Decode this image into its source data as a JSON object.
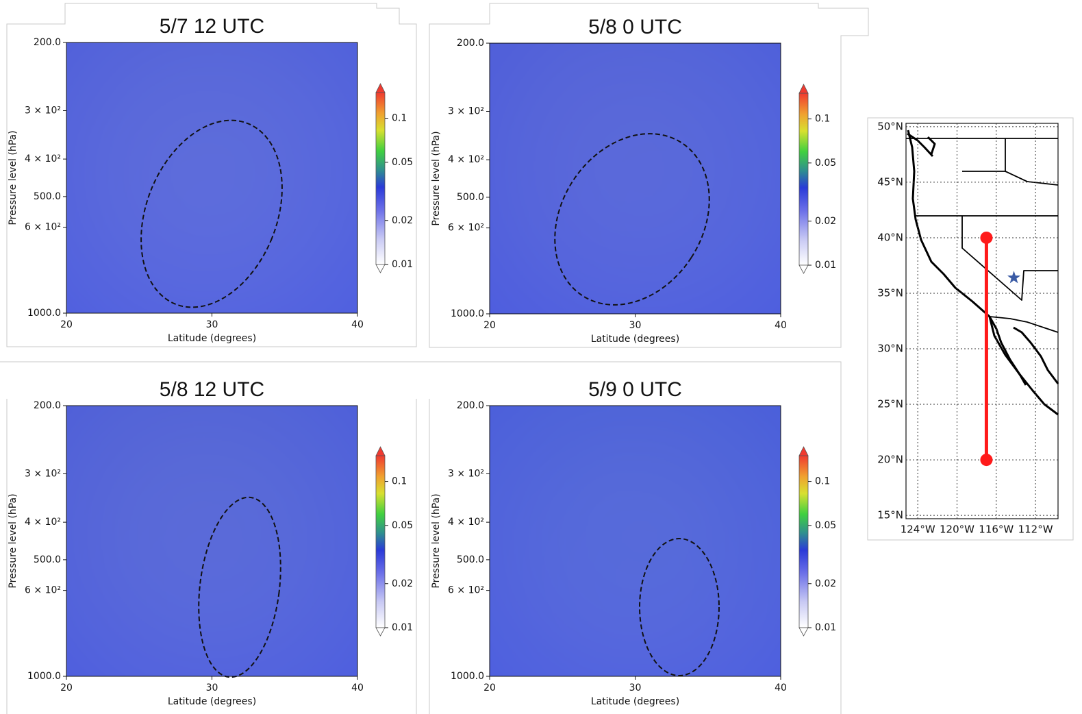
{
  "chart_data": [
    {
      "type": "contour",
      "title": "5/7 12 UTC",
      "xlabel": "Latitude (degrees)",
      "ylabel": "Pressure level (hPa)",
      "xlim": [
        20,
        40
      ],
      "xticks": [
        20,
        30,
        40
      ],
      "ylim": [
        1000,
        200
      ],
      "yscale": "log",
      "yticks": [
        {
          "value": 200,
          "label": "200.0"
        },
        {
          "value": 300,
          "label": "3 × 10²"
        },
        {
          "value": 400,
          "label": "4 × 10²"
        },
        {
          "value": 500,
          "label": "500.0"
        },
        {
          "value": 600,
          "label": "6 × 10²"
        },
        {
          "value": 1000,
          "label": "1000.0"
        }
      ],
      "colorbar": {
        "clim": [
          0.01,
          0.15
        ],
        "scale": "log",
        "ticks": [
          0.01,
          0.02,
          0.05,
          0.1
        ]
      }
    },
    {
      "type": "contour",
      "title": "5/8 0 UTC",
      "xlabel": "Latitude (degrees)",
      "ylabel": "Pressure level (hPa)",
      "xlim": [
        20,
        40
      ],
      "xticks": [
        20,
        30,
        40
      ],
      "ylim": [
        1000,
        200
      ],
      "yscale": "log",
      "yticks": [
        {
          "value": 200,
          "label": "200.0"
        },
        {
          "value": 300,
          "label": "3 × 10²"
        },
        {
          "value": 400,
          "label": "4 × 10²"
        },
        {
          "value": 500,
          "label": "500.0"
        },
        {
          "value": 600,
          "label": "6 × 10²"
        },
        {
          "value": 1000,
          "label": "1000.0"
        }
      ],
      "colorbar": {
        "clim": [
          0.01,
          0.15
        ],
        "scale": "log",
        "ticks": [
          0.01,
          0.02,
          0.05,
          0.1
        ]
      }
    },
    {
      "type": "contour",
      "title": "5/8 12 UTC",
      "xlabel": "Latitude (degrees)",
      "ylabel": "Pressure level (hPa)",
      "xlim": [
        20,
        40
      ],
      "xticks": [
        20,
        30,
        40
      ],
      "ylim": [
        1000,
        200
      ],
      "yscale": "log",
      "yticks": [
        {
          "value": 200,
          "label": "200.0"
        },
        {
          "value": 300,
          "label": "3 × 10²"
        },
        {
          "value": 400,
          "label": "4 × 10²"
        },
        {
          "value": 500,
          "label": "500.0"
        },
        {
          "value": 600,
          "label": "6 × 10²"
        },
        {
          "value": 1000,
          "label": "1000.0"
        }
      ],
      "colorbar": {
        "clim": [
          0.01,
          0.15
        ],
        "scale": "log",
        "ticks": [
          0.01,
          0.02,
          0.05,
          0.1
        ]
      }
    },
    {
      "type": "contour",
      "title": "5/9 0 UTC",
      "xlabel": "Latitude (degrees)",
      "ylabel": "Pressure level (hPa)",
      "xlim": [
        20,
        40
      ],
      "xticks": [
        20,
        30,
        40
      ],
      "ylim": [
        1000,
        200
      ],
      "yscale": "log",
      "yticks": [
        {
          "value": 200,
          "label": "200.0"
        },
        {
          "value": 300,
          "label": "3 × 10²"
        },
        {
          "value": 400,
          "label": "4 × 10²"
        },
        {
          "value": 500,
          "label": "500.0"
        },
        {
          "value": 600,
          "label": "6 × 10²"
        },
        {
          "value": 1000,
          "label": "1000.0"
        }
      ],
      "colorbar": {
        "clim": [
          0.01,
          0.15
        ],
        "scale": "log",
        "ticks": [
          0.01,
          0.02,
          0.05,
          0.1
        ]
      }
    },
    {
      "type": "map",
      "xlim": [
        -125.2,
        -109.7
      ],
      "ylim": [
        14.7,
        50.3
      ],
      "grid": true,
      "xticks": [
        {
          "value": -124,
          "label": "124°W"
        },
        {
          "value": -120,
          "label": "120°W"
        },
        {
          "value": -116,
          "label": "116°W"
        },
        {
          "value": -112,
          "label": "112°W"
        }
      ],
      "yticks": [
        {
          "value": 50,
          "label": "50°N"
        },
        {
          "value": 45,
          "label": "45°N"
        },
        {
          "value": 40,
          "label": "40°N"
        },
        {
          "value": 35,
          "label": "35°N"
        },
        {
          "value": 30,
          "label": "30°N"
        },
        {
          "value": 25,
          "label": "25°N"
        },
        {
          "value": 20,
          "label": "20°N"
        },
        {
          "value": 15,
          "label": "15°N"
        }
      ],
      "series": [
        {
          "color": "#ff1a1a",
          "x": [
            -117,
            -117
          ],
          "y": [
            20,
            40
          ]
        }
      ],
      "points": {
        "marker": "star",
        "color": "#3b5ba5",
        "x": [
          -114.2
        ],
        "y": [
          36.4
        ]
      }
    }
  ]
}
